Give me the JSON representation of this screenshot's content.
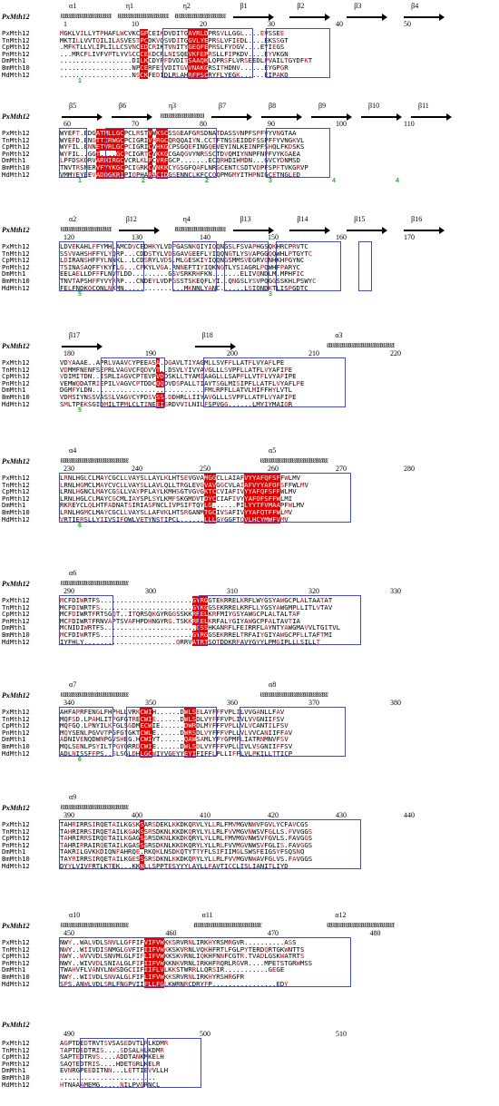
{
  "reference_label": "PxMth12",
  "names": [
    "PxMth12",
    "TnMth12",
    "CpMth12",
    "PnMth12",
    "DmMth1",
    "BmMth10",
    "MdMth12"
  ],
  "blocks": [
    {
      "ss": [
        "α1",
        "η1",
        "η2",
        "β1",
        "β2",
        "β3",
        "β4"
      ],
      "numbers": [
        "1",
        "10",
        "20",
        "30",
        "40",
        "50"
      ],
      "marks": [
        "1"
      ],
      "rows": [
        "MGKLVILLYTPHAFLWCVKCGPCEIKDVDITGAVRLDPRSVLLGGL....EVSSEE",
        "MKTILLVVTQILILASVESTPCDKVQSVDITGGVLYEPRSLVFIEDL....EKSSGT",
        ".MFKTLLVLIPLILLCSVNCEDCRIKTVNITYGEQFEPRSLFYDGV....EYIEGS",
        "...MRCFLIVFVPTLYVSCCCEKDCRLNISQEVKFEPRSLLFIPKDV....EYVKGN",
        "..................DILKCDYPFDVDITSAAQKLQPRSFLVRSEEDLPVAILTGYDFKT",
        "..................NPCERFESVDITGVVNAKGRSITHDNV......EYGPGR",
        "..................NSCKFEDIDLRLAHRFPSCRYFLYEGK......EIPAKQ"
      ]
    },
    {
      "ss": [
        "β5",
        "β6",
        "η3",
        "β7",
        "β8",
        "β9",
        "β10",
        "β11"
      ],
      "numbers": [
        "60",
        "70",
        "80",
        "90",
        "100",
        "110"
      ],
      "marks": [
        "1",
        "2",
        "2",
        "3",
        "4",
        "4"
      ],
      "rows": [
        "WYEFT.EDGATMLLGCPCLRSTVWKSCSSGEAFGRSDNATDASSVNPFSPFVYVNGTAA",
        "WYEFD.ENGTTIRWGCPCIGRIVHRGCQRQQAIYN.CCTFTNSSEIDDFSSPFFYVNGKVL",
        "WYFIL.ENNETVRLGCPCIGRICVHKGCPSGQEFINGQEVEYINLKEINPFSHQLFKDSKS",
        "WYFIL..GGT....GCPCIGRTCVKKGCGAQGVYNRSSCTDVQMIYNNPFNPFVYKGAEA",
        "LPFDSKQRVARHIRGCVCRLKLPCVRFGCP.......ECQRHDIHMDN...GVCYDNMSD",
        "TNVTRSNERVFYYKGCPCIGRKCVNKKCYGSGFQAFLNRGCENTCSDTVDPFSPFTVKGRVP",
        "VMMYEYEEVADDGKRIPIQPHARACIDGSENNCLKFCCQQPMGMYITHPNIGCETNGLED"
      ]
    },
    {
      "ss": [
        "α2",
        "β12",
        "η4",
        "β13",
        "β14",
        "β15",
        "β16"
      ],
      "numbers": [
        "120",
        "130",
        "140",
        "150",
        "160",
        "170"
      ],
      "marks": [
        "5",
        "3"
      ],
      "rows": [
        "LDVEKAHLFFYMHLAMCDVCEDHKYLVDPGASNKQIYIQQNGSLFSVAPHGSQKHRCPRVTC",
        "SSVVAHSHFFYLYQRP...CDDSTYLVDSGAVGEEFLYIQQNGTLYSVAPGGQQWHLPTGYTC",
        "LDIRANSHFFYLNNKL..LCDSRYLVDS.MLGESKIYIQQNGSMMSVEGRVQNHKHPGYNC",
        "TSINASAQFFYKYTLG...CPKYLVGA.RNNEFTIYIQKNGTLYSIAGRLPQWHFPARYC",
        "EELAELLDFFFLNVTLDD.........GSVSRKRHFKN.......ELIVQNDLM.MPHFIC",
        "TNVTAPSHFFYVYRRP...CNDEYLVDPGSSTSKEQFLYI..QNGSLYSVPQGGSSKHLPSWYC",
        "FELFNDKQCQNLNKMN...............MKNNLYANC......LSIQNDKTLISPGDTC"
      ]
    },
    {
      "ss": [
        "β17",
        "β18",
        "α3"
      ],
      "numbers": [
        "180",
        "190",
        "200",
        "210",
        "220"
      ],
      "marks": [
        "5"
      ],
      "rows": [
        "VDYAAAE..APRLVAAVCYPEEASA.DGAVLTIYAGMLLSVFFLLATFLVYAFLPE",
        "VDMMFNENFSEPRLVAGVCFQDVVT..DSVLYIVYAVGLLLSVPFLLATFLVYAFIPE",
        "VDIMITDN..ISRLIAGVCPTEVPVDDSKLLTYAMIAAGLLLSAPFLLVTFLVYAFIPE",
        "VEMWQDATRIEPILVAGVCPTDDCQQDVDSPALLTIAYTSGLMISIPFLLATFLVYAFLPE",
        "DGMFYLDN............................FMLRPFLLATVLMIFFHYLVTL",
        "VDMSIYNSSVASSLVAGVCYPDSVSS.DDHRLLIIYAVGLLLSVPFLLATFLVYAFIPE",
        "SMLTPEKSGIDMILTPMLCLTINEEISRDVVILNILFSPVGG......LMYIYMAIQR"
      ]
    },
    {
      "ss": [
        "α4",
        "α5"
      ],
      "numbers": [
        "230",
        "240",
        "250",
        "260",
        "270",
        "280"
      ],
      "marks": [
        "6"
      ],
      "rows": [
        "LRNLHGLCLMAYCGCLLVAYSLLAYLKLHTSEVGVAMGGCLLAIAFVYYAFQFSFFWLMV",
        "LRNLHGMCLMAYCVCLLVAYSLLAVLQLLTRGLEVGVAVGGCVLAIAFVYYAFQFSFFWLMV",
        "LRNLHGNCLMAYCGSLLVAYPFLAYLKMHSGTVGVGKTCCVIAFIVYYAFQFSFFWLMV",
        "LRNLHGLCLMAYCGCMLIAYSPLSYLKMFSKGMDVTDYCCIAFIVYYAFQFSFFWLMI",
        "RKREYCLQLHTFADNATSIRIASFNCLIVPSIFTQYLG......PILYYTFVMAAPFWLMV",
        "LRNLHGMCLMAYCGCLLVAYSLLAFVKLHTSRGANMTGCIVSAFIVYYAFQTFFWLMV",
        "VRTIERSLLYIIVSIFQWLVETYNSTIPCL......LLLGYGGFTQVLHCYMWFVMV"
      ]
    },
    {
      "ss": [
        "α6"
      ],
      "numbers": [
        "290",
        "300",
        "310",
        "320",
        "330"
      ],
      "marks": [],
      "rows": [
        "MCFDIWRTFS.......................GYRGGTEKRRELKRFLWYGSYAWGCPLALTAATAT",
        "MCFDIWRTFS.......................GYKGGSEKRRELKRFLLYGSYAWGMPLLITLVTAV",
        "MCFDIWRTFRTSGQT..ITQRSQKGYRGGSSKKRRELKRFMIYGSYAWGCPLALTALTAF",
        "MCFDIWRTFRNVAPTSVAFHPDHNGYRG.TSKKRRELKRFALYGIYAWGCPFALTAVTIA",
        "MCNIDIWRTFS.......................GSSHKANRFLFEIRRFLAYNTYAWGMAVVLTGITVL",
        "MCFDIWRTFS.......................GYRGGSEKRRELTRFAIYGIYAWGCPFLLTAFTMI",
        "IYFHLY.......................QRRVATRTSQTDDKRFAVYGYYLPMGIPLLLSILLT"
      ]
    },
    {
      "ss": [
        "α7",
        "α8"
      ],
      "numbers": [
        "340",
        "350",
        "360",
        "370",
        "380"
      ],
      "marks": [
        "6"
      ],
      "rows": [
        "AHFAPRFENGLFHPHLLVRKCWIH......DWLSELAYFFFVPLILVVGANLLFAV",
        "MQFSD.LPAHLITPGFGTRECWIE......DWLSDLVYFFFVPLIVLVVGNIIFSV",
        "MQFGQ.LPNYILKFGLSGDMECWIE......DWRDLMYFFFVPLLVLVCANTILFSV",
        "MQYSENLPGVVTPGFGTGKTCWLE......DWRSDLVYFFFVPLLVLVVCANIIFFAV",
        "ADNIVENQDWNPGVSHEG.HCWIYT......QAWSAMLYFYGPMFLIATRNMNVFSV",
        "MQLSENLPSYILTPGYQRRDCWIE......DWLSDLVYFFFVPLLIVLVSGNIIFFSV",
        "ADLNISSFFPS..SLSGLDHLGCWIYVGEYYEYIFIFFLPLLIFFLVLPKILLTTICP"
      ]
    },
    {
      "ss": [
        "α9"
      ],
      "numbers": [
        "390",
        "400",
        "410",
        "420",
        "430",
        "440"
      ],
      "marks": [],
      "rows": [
        "TAHRIRRSIRQETAILKGSKSARSDEKLKKDKQRVLYLLRLFMVMGVNWVFGVLYCFAVCGS",
        "TAHRIRRSIRQETAILKGAKSSRSDKNLKKDKQRYLYLLRLFVVMGVNWSVFGLLS.FVVGGS",
        "TAHRIRRSIRQETAILKGAGSSRSDKNLKKDKQRYLYLLRLFMVMGVNWSVFGVLS.FAVGGS",
        "TAHRIRRAIRQETAILKGASSSRSDKNLKKDKQRYLYLLRLFVVMGVNWSVFGLIS.FAVGGS",
        "TAKRILGVKKDIQNFAHRQE.RKQKLNSDKQTYTTYFLSIFIIMGLSWSFEIGSYFSQSNQ",
        "TAYRIRRSIRQETAILKGESSSRSDKNLKKDKQRYLYLLRLFVVMGVNWAVFGLVS.FAVGGS",
        "DYYLVIVFRTLKTEK...KKNLLSPPTESYYYLAYLLFAVTICCLISLIANITLIYD"
      ]
    },
    {
      "ss": [
        "α10",
        "α11",
        "α12"
      ],
      "numbers": [
        "450",
        "460",
        "470",
        "480"
      ],
      "marks": [],
      "rows": [
        "NWY..WALVDLSNVLLGFFIFVIFVWKKSRVRNLIRKHYRSMRGVR..........ASS",
        "NWY..WIIVDISNMGLGVFIFIIFVWKKSKVRNLVQKHFRTLFGLPYTERDQRTGKWNTTS",
        "NWY..WVVVDLSNVMLGLFIFLIFVWKKSKVRNLIQKHFNNFCGTR.TVADLGSKWATRTS",
        "NWY..WIVVDLSNIALGLFIFIIFVWKKNKVRNLIRKHFRQRLRGVR....MPETSTGRWMSS",
        "TWAHVFLVANYLNWSDGCIIFIIFLVLKKSTWRRLLQRSIR...........GEGE",
        "NWY..WIIVDLSNVALGLFIFLIFVWKKSRVRNLIRKHYRSHRGFR",
        "SPS.ANWLVDLSRLFNGPVIIFLLFGLKWRNRCDRYFP................EDY"
      ]
    },
    {
      "ss": [],
      "numbers": [
        "490",
        "500",
        "510"
      ],
      "marks": [],
      "rows": [
        "AGPTDEDTRVTSVSASEDVTLRLKDMR",
        "TAPTDEDTRIS....SDSALHLKDMR",
        "SAPTEDTRVS....ADDTANKMKELH",
        "SAQTEDTRIS....HDETGRLKELR",
        "EVNRGPEEDITNN...LETTIEVVLLH",
        "........................",
        "HTNAAAMEMG.....NILPVGRNCL"
      ]
    }
  ]
}
